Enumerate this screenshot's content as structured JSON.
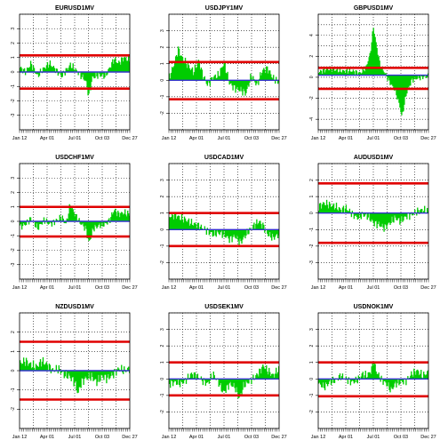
{
  "colors": {
    "bar": "#00cc00",
    "band": "#e00000",
    "mean": "#3333cc",
    "grid": "#000000"
  },
  "chart_data": [
    {
      "type": "bar",
      "title": "EURUSD1MV",
      "x_ticks": [
        "Jan 12",
        "Apr 01",
        "Jul 01",
        "Oct 03",
        "Dec 27"
      ],
      "ylim": [
        -4,
        4
      ],
      "y_ticks": [
        "-3",
        "-2",
        "-1",
        "0",
        "1",
        "2",
        "3"
      ],
      "upper": 1.15,
      "lower": -1.15,
      "mean": 0,
      "anchors": [
        [
          0,
          0.3
        ],
        [
          0.05,
          0
        ],
        [
          0.1,
          0.6
        ],
        [
          0.16,
          -0.3
        ],
        [
          0.21,
          0.2
        ],
        [
          0.27,
          0.6
        ],
        [
          0.32,
          0.2
        ],
        [
          0.38,
          -0.3
        ],
        [
          0.42,
          0.1
        ],
        [
          0.46,
          0.5
        ],
        [
          0.5,
          0.2
        ],
        [
          0.55,
          -0.2
        ],
        [
          0.6,
          -0.6
        ],
        [
          0.63,
          -1.7
        ],
        [
          0.66,
          -0.4
        ],
        [
          0.72,
          -0.2
        ],
        [
          0.78,
          -0.3
        ],
        [
          0.82,
          0.3
        ],
        [
          0.86,
          0.9
        ],
        [
          0.9,
          0.6
        ],
        [
          0.95,
          1.0
        ],
        [
          1,
          0.8
        ]
      ]
    },
    {
      "type": "bar",
      "title": "USDJPY1MV",
      "x_ticks": [
        "Jan 12",
        "Apr 01",
        "Jul 01",
        "Oct 03",
        "Dec 27"
      ],
      "ylim": [
        -3,
        4
      ],
      "y_ticks": [
        "-2",
        "-1",
        "0",
        "1",
        "2",
        "3"
      ],
      "upper": 1.1,
      "lower": -1.15,
      "mean": 0,
      "anchors": [
        [
          0,
          0.2
        ],
        [
          0.05,
          1.1
        ],
        [
          0.08,
          1.9
        ],
        [
          0.12,
          1.3
        ],
        [
          0.17,
          0.9
        ],
        [
          0.22,
          0.5
        ],
        [
          0.27,
          1.2
        ],
        [
          0.3,
          0.4
        ],
        [
          0.35,
          -0.3
        ],
        [
          0.4,
          0.2
        ],
        [
          0.45,
          0.3
        ],
        [
          0.5,
          1.1
        ],
        [
          0.55,
          -0.2
        ],
        [
          0.6,
          -0.5
        ],
        [
          0.65,
          -0.6
        ],
        [
          0.7,
          -0.8
        ],
        [
          0.75,
          0.3
        ],
        [
          0.8,
          -0.3
        ],
        [
          0.85,
          0.6
        ],
        [
          0.9,
          0.7
        ],
        [
          0.95,
          0.1
        ],
        [
          1,
          -0.1
        ]
      ]
    },
    {
      "type": "bar",
      "title": "GBPUSD1MV",
      "x_ticks": [
        "Jan 12",
        "Apr 01",
        "Jul 01",
        "Oct 03",
        "Dec 27"
      ],
      "ylim": [
        -5,
        6
      ],
      "y_ticks": [
        "-4",
        "-2",
        "0",
        "2",
        "4"
      ],
      "upper": 0.9,
      "lower": -1.1,
      "mean": 0.2,
      "anchors": [
        [
          0,
          0.5
        ],
        [
          0.1,
          0.8
        ],
        [
          0.2,
          0.6
        ],
        [
          0.3,
          0.6
        ],
        [
          0.38,
          0.4
        ],
        [
          0.43,
          0.9
        ],
        [
          0.47,
          2.2
        ],
        [
          0.5,
          4.8
        ],
        [
          0.52,
          3.5
        ],
        [
          0.56,
          1.2
        ],
        [
          0.6,
          0.5
        ],
        [
          0.65,
          -0.5
        ],
        [
          0.7,
          -1.3
        ],
        [
          0.74,
          -2.7
        ],
        [
          0.76,
          -3.8
        ],
        [
          0.8,
          -1.6
        ],
        [
          0.85,
          -0.3
        ],
        [
          0.9,
          -0.1
        ],
        [
          0.95,
          0
        ],
        [
          1,
          0.1
        ]
      ]
    },
    {
      "type": "bar",
      "title": "USDCHF1MV",
      "x_ticks": [
        "Jan 12",
        "Apr 01",
        "Jul 01",
        "Oct 03",
        "Dec 27"
      ],
      "ylim": [
        -4,
        4
      ],
      "y_ticks": [
        "-3",
        "-2",
        "-1",
        "0",
        "1",
        "2",
        "3"
      ],
      "upper": 1.0,
      "lower": -1.05,
      "mean": 0,
      "anchors": [
        [
          0,
          -0.4
        ],
        [
          0.05,
          -0.2
        ],
        [
          0.1,
          0.2
        ],
        [
          0.16,
          -0.5
        ],
        [
          0.22,
          0.1
        ],
        [
          0.27,
          -0.2
        ],
        [
          0.32,
          0
        ],
        [
          0.38,
          0.3
        ],
        [
          0.42,
          -0.2
        ],
        [
          0.46,
          1.2
        ],
        [
          0.5,
          0.5
        ],
        [
          0.55,
          -0.1
        ],
        [
          0.6,
          -0.5
        ],
        [
          0.63,
          -1.5
        ],
        [
          0.67,
          -0.5
        ],
        [
          0.72,
          -0.3
        ],
        [
          0.78,
          -0.2
        ],
        [
          0.82,
          0.1
        ],
        [
          0.86,
          0.8
        ],
        [
          0.9,
          0.5
        ],
        [
          0.95,
          0.6
        ],
        [
          1,
          0.5
        ]
      ]
    },
    {
      "type": "bar",
      "title": "USDCAD1MV",
      "x_ticks": [
        "Jan 12",
        "Apr 01",
        "Jul 01",
        "Oct 03",
        "Dec 27"
      ],
      "ylim": [
        -3,
        4
      ],
      "y_ticks": [
        "-2",
        "-1",
        "0",
        "1",
        "2",
        "3"
      ],
      "upper": 1.0,
      "lower": -1.0,
      "mean": 0,
      "anchors": [
        [
          0,
          0.8
        ],
        [
          0.05,
          0.9
        ],
        [
          0.1,
          0.7
        ],
        [
          0.15,
          0.6
        ],
        [
          0.2,
          0.4
        ],
        [
          0.25,
          0.3
        ],
        [
          0.3,
          0.1
        ],
        [
          0.35,
          -0.1
        ],
        [
          0.4,
          -0.3
        ],
        [
          0.45,
          -0.2
        ],
        [
          0.5,
          -0.3
        ],
        [
          0.55,
          -0.6
        ],
        [
          0.6,
          -0.4
        ],
        [
          0.65,
          -0.8
        ],
        [
          0.7,
          -0.3
        ],
        [
          0.74,
          0
        ],
        [
          0.78,
          0.3
        ],
        [
          0.82,
          0.5
        ],
        [
          0.86,
          0.2
        ],
        [
          0.9,
          -0.3
        ],
        [
          0.95,
          -0.5
        ],
        [
          1,
          -0.3
        ]
      ]
    },
    {
      "type": "bar",
      "title": "AUDUSD1MV",
      "x_ticks": [
        "Jan 12",
        "Apr 01",
        "Jul 01",
        "Oct 03",
        "Dec 27"
      ],
      "ylim": [
        -4,
        3
      ],
      "y_ticks": [
        "-3",
        "-2",
        "-1",
        "0",
        "1",
        "2"
      ],
      "upper": 1.8,
      "lower": -1.8,
      "mean": 0,
      "anchors": [
        [
          0,
          0.4
        ],
        [
          0.05,
          0.6
        ],
        [
          0.1,
          0.5
        ],
        [
          0.15,
          0.4
        ],
        [
          0.2,
          0.2
        ],
        [
          0.25,
          0.3
        ],
        [
          0.3,
          0
        ],
        [
          0.35,
          -0.3
        ],
        [
          0.4,
          -0.1
        ],
        [
          0.45,
          -0.2
        ],
        [
          0.5,
          -0.6
        ],
        [
          0.55,
          -0.7
        ],
        [
          0.6,
          -0.9
        ],
        [
          0.65,
          -0.6
        ],
        [
          0.7,
          -0.3
        ],
        [
          0.75,
          -0.5
        ],
        [
          0.8,
          -0.2
        ],
        [
          0.85,
          -0.1
        ],
        [
          0.9,
          0.1
        ],
        [
          0.95,
          0.2
        ],
        [
          1,
          0.1
        ]
      ]
    },
    {
      "type": "bar",
      "title": "NZDUSD1MV",
      "x_ticks": [
        "Jan 12",
        "Apr 01",
        "Jul 01",
        "Oct 03",
        "Dec 27"
      ],
      "ylim": [
        -3,
        3
      ],
      "y_ticks": [
        "-2",
        "-1",
        "0",
        "1",
        "2"
      ],
      "upper": 1.5,
      "lower": -1.5,
      "mean": 0,
      "anchors": [
        [
          0,
          0.4
        ],
        [
          0.05,
          0.5
        ],
        [
          0.1,
          0.3
        ],
        [
          0.15,
          0.2
        ],
        [
          0.2,
          0.5
        ],
        [
          0.25,
          0.3
        ],
        [
          0.3,
          0
        ],
        [
          0.35,
          0.1
        ],
        [
          0.4,
          -0.2
        ],
        [
          0.45,
          -0.3
        ],
        [
          0.5,
          -0.6
        ],
        [
          0.53,
          -1.2
        ],
        [
          0.56,
          -0.6
        ],
        [
          0.6,
          -0.4
        ],
        [
          0.65,
          -0.3
        ],
        [
          0.7,
          -0.6
        ],
        [
          0.75,
          -0.3
        ],
        [
          0.8,
          -0.4
        ],
        [
          0.85,
          -0.2
        ],
        [
          0.9,
          0.1
        ],
        [
          0.95,
          0
        ],
        [
          1,
          0.1
        ]
      ]
    },
    {
      "type": "bar",
      "title": "USDSEK1MV",
      "x_ticks": [
        "Jan 12",
        "Apr 01",
        "Jul 01",
        "Oct 03",
        "Dec 27"
      ],
      "ylim": [
        -3,
        4
      ],
      "y_ticks": [
        "-2",
        "-1",
        "0",
        "1",
        "2",
        "3"
      ],
      "upper": 1.0,
      "lower": -1.0,
      "mean": 0,
      "anchors": [
        [
          0,
          -0.3
        ],
        [
          0.05,
          -0.2
        ],
        [
          0.1,
          -0.3
        ],
        [
          0.15,
          -0.1
        ],
        [
          0.2,
          0.3
        ],
        [
          0.25,
          0.2
        ],
        [
          0.3,
          -0.1
        ],
        [
          0.35,
          -0.3
        ],
        [
          0.4,
          0.3
        ],
        [
          0.45,
          -0.2
        ],
        [
          0.48,
          -0.7
        ],
        [
          0.5,
          -0.8
        ],
        [
          0.55,
          -0.3
        ],
        [
          0.6,
          -0.5
        ],
        [
          0.64,
          -1.2
        ],
        [
          0.68,
          -0.4
        ],
        [
          0.72,
          -0.2
        ],
        [
          0.78,
          0.1
        ],
        [
          0.82,
          0.4
        ],
        [
          0.86,
          0.8
        ],
        [
          0.9,
          0.5
        ],
        [
          0.95,
          0.2
        ],
        [
          1,
          0.6
        ]
      ]
    },
    {
      "type": "bar",
      "title": "USDNOK1MV",
      "x_ticks": [
        "Jan 12",
        "Apr 01",
        "Jul 01",
        "Oct 03",
        "Dec 27"
      ],
      "ylim": [
        -3,
        4
      ],
      "y_ticks": [
        "-2",
        "-1",
        "0",
        "1",
        "2",
        "3"
      ],
      "upper": 1.0,
      "lower": -1.05,
      "mean": 0,
      "anchors": [
        [
          0,
          -0.3
        ],
        [
          0.05,
          -0.5
        ],
        [
          0.1,
          -0.2
        ],
        [
          0.15,
          -0.1
        ],
        [
          0.2,
          0.2
        ],
        [
          0.25,
          0
        ],
        [
          0.3,
          -0.2
        ],
        [
          0.35,
          -0.1
        ],
        [
          0.4,
          0.3
        ],
        [
          0.44,
          0.2
        ],
        [
          0.48,
          0.5
        ],
        [
          0.5,
          1.1
        ],
        [
          0.53,
          0.4
        ],
        [
          0.58,
          -0.1
        ],
        [
          0.62,
          -0.3
        ],
        [
          0.66,
          -0.7
        ],
        [
          0.7,
          -0.3
        ],
        [
          0.75,
          -0.2
        ],
        [
          0.8,
          -0.1
        ],
        [
          0.85,
          0.3
        ],
        [
          0.9,
          0.5
        ],
        [
          0.95,
          0.2
        ],
        [
          1,
          0.4
        ]
      ]
    }
  ]
}
